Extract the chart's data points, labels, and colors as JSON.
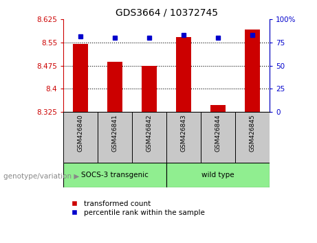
{
  "title": "GDS3664 / 10372745",
  "samples": [
    "GSM426840",
    "GSM426841",
    "GSM426842",
    "GSM426843",
    "GSM426844",
    "GSM426845"
  ],
  "transformed_count": [
    8.545,
    8.488,
    8.475,
    8.568,
    8.348,
    8.592
  ],
  "percentile_rank": [
    82,
    80,
    80,
    83,
    80,
    83
  ],
  "y_min": 8.325,
  "y_max": 8.625,
  "y_ticks": [
    8.325,
    8.4,
    8.475,
    8.55,
    8.625
  ],
  "y_tick_labels": [
    "8.325",
    "8.4",
    "8.475",
    "8.55",
    "8.625"
  ],
  "y2_ticks": [
    0,
    25,
    50,
    75,
    100
  ],
  "y2_tick_labels": [
    "0",
    "25",
    "50",
    "75",
    "100%"
  ],
  "bar_color": "#CC0000",
  "percentile_color": "#0000CC",
  "bar_width": 0.45,
  "group1_label": "SOCS-3 transgenic",
  "group2_label": "wild type",
  "group_color": "#90EE90",
  "sample_box_color": "#C8C8C8",
  "legend_items": [
    {
      "label": "transformed count",
      "color": "#CC0000"
    },
    {
      "label": "percentile rank within the sample",
      "color": "#0000CC"
    }
  ],
  "group_label": "genotype/variation"
}
